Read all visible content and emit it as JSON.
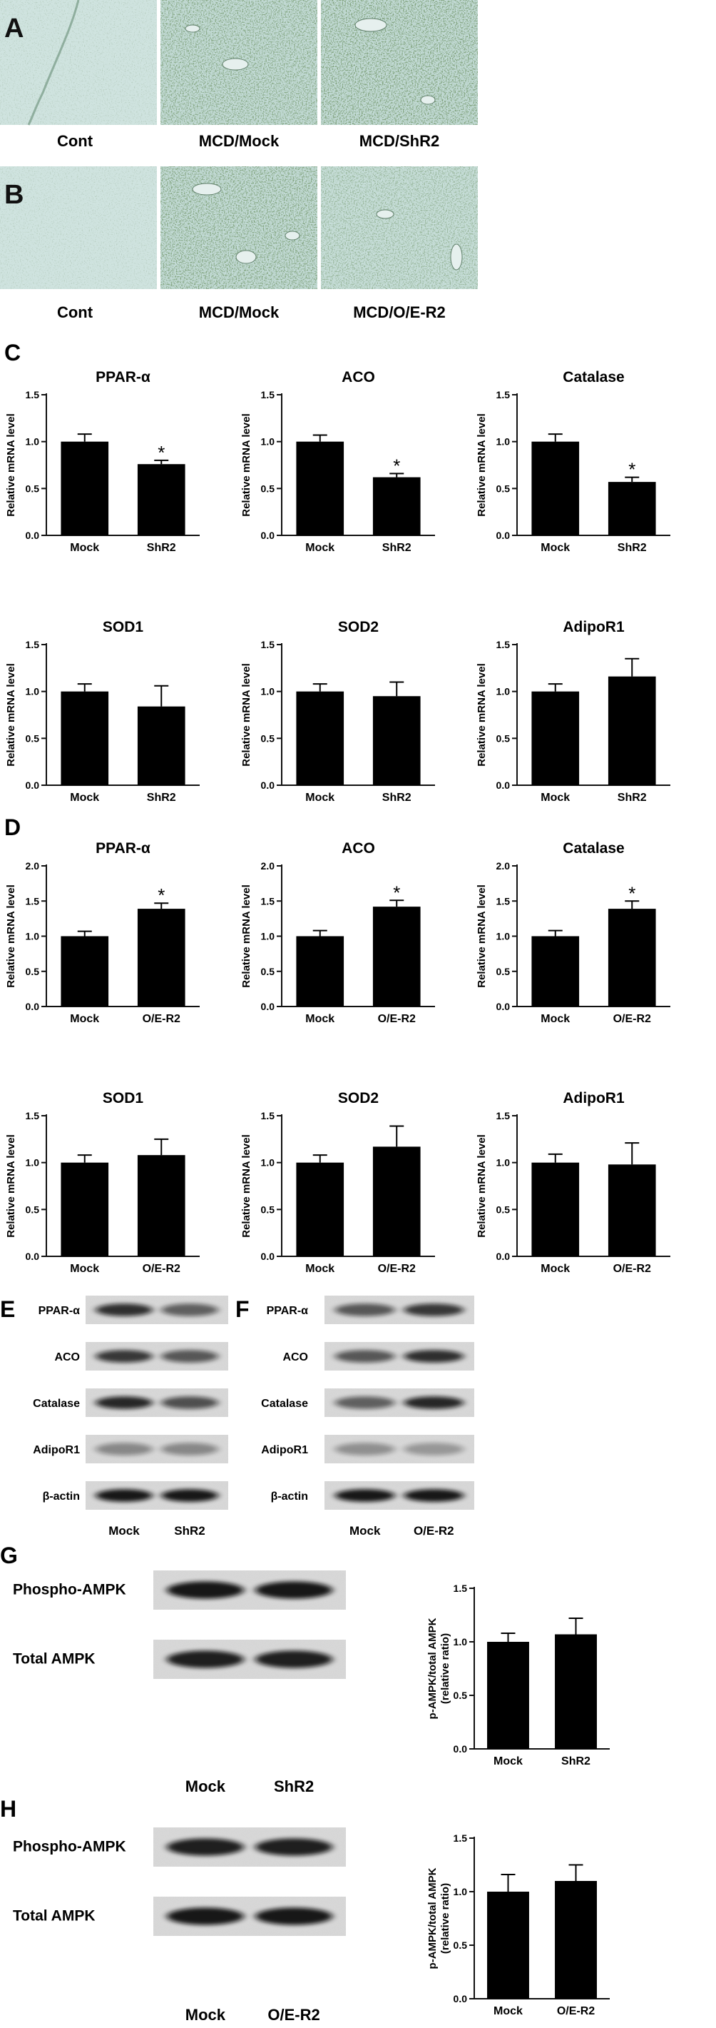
{
  "panels": {
    "A": {
      "letter": "A",
      "labels": [
        "Cont",
        "MCD/Mock",
        "MCD/ShR2"
      ],
      "staining": [
        "light",
        "heavy",
        "heavy"
      ]
    },
    "B": {
      "letter": "B",
      "labels": [
        "Cont",
        "MCD/Mock",
        "MCD/O/E-R2"
      ],
      "staining": [
        "light",
        "heavy",
        "medium"
      ]
    },
    "C": {
      "letter": "C"
    },
    "D": {
      "letter": "D"
    },
    "E": {
      "letter": "E",
      "rows": [
        "PPAR-α",
        "ACO",
        "Catalase",
        "AdipoR1",
        "β-actin"
      ],
      "lanes": [
        "Mock",
        "ShR2"
      ]
    },
    "F": {
      "letter": "F",
      "rows": [
        "PPAR-α",
        "ACO",
        "Catalase",
        "AdipoR1",
        "β-actin"
      ],
      "lanes": [
        "Mock",
        "O/E-R2"
      ]
    },
    "G": {
      "letter": "G",
      "rows": [
        "Phospho-AMPK",
        "Total AMPK"
      ],
      "lanes": [
        "Mock",
        "ShR2"
      ]
    },
    "H": {
      "letter": "H",
      "rows": [
        "Phospho-AMPK",
        "Total AMPK"
      ],
      "lanes": [
        "Mock",
        "O/E-R2"
      ]
    }
  },
  "chart_data": [
    {
      "id": "C1",
      "type": "bar",
      "title": "PPAR-α",
      "ylabel": "Relative mRNA level",
      "categories": [
        "Mock",
        "ShR2"
      ],
      "values": [
        1.0,
        0.76
      ],
      "errors": [
        0.08,
        0.04
      ],
      "significance": [
        "",
        "*"
      ],
      "ylim": [
        0,
        1.5
      ],
      "yticks": [
        "0.0",
        "0.5",
        "1.0",
        "1.5"
      ]
    },
    {
      "id": "C2",
      "type": "bar",
      "title": "ACO",
      "ylabel": "Relative mRNA level",
      "categories": [
        "Mock",
        "ShR2"
      ],
      "values": [
        1.0,
        0.62
      ],
      "errors": [
        0.07,
        0.04
      ],
      "significance": [
        "",
        "*"
      ],
      "ylim": [
        0,
        1.5
      ],
      "yticks": [
        "0.0",
        "0.5",
        "1.0",
        "1.5"
      ]
    },
    {
      "id": "C3",
      "type": "bar",
      "title": "Catalase",
      "ylabel": "Relative mRNA level",
      "categories": [
        "Mock",
        "ShR2"
      ],
      "values": [
        1.0,
        0.57
      ],
      "errors": [
        0.08,
        0.05
      ],
      "significance": [
        "",
        "*"
      ],
      "ylim": [
        0,
        1.5
      ],
      "yticks": [
        "0.0",
        "0.5",
        "1.0",
        "1.5"
      ]
    },
    {
      "id": "C4",
      "type": "bar",
      "title": "SOD1",
      "ylabel": "Relative mRNA level",
      "categories": [
        "Mock",
        "ShR2"
      ],
      "values": [
        1.0,
        0.84
      ],
      "errors": [
        0.08,
        0.22
      ],
      "significance": [
        "",
        ""
      ],
      "ylim": [
        0,
        1.5
      ],
      "yticks": [
        "0.0",
        "0.5",
        "1.0",
        "1.5"
      ]
    },
    {
      "id": "C5",
      "type": "bar",
      "title": "SOD2",
      "ylabel": "Relative mRNA level",
      "categories": [
        "Mock",
        "ShR2"
      ],
      "values": [
        1.0,
        0.95
      ],
      "errors": [
        0.08,
        0.15
      ],
      "significance": [
        "",
        ""
      ],
      "ylim": [
        0,
        1.5
      ],
      "yticks": [
        "0.0",
        "0.5",
        "1.0",
        "1.5"
      ]
    },
    {
      "id": "C6",
      "type": "bar",
      "title": "AdipoR1",
      "ylabel": "Relative mRNA level",
      "categories": [
        "Mock",
        "ShR2"
      ],
      "values": [
        1.0,
        1.16
      ],
      "errors": [
        0.08,
        0.19
      ],
      "significance": [
        "",
        ""
      ],
      "ylim": [
        0,
        1.5
      ],
      "yticks": [
        "0.0",
        "0.5",
        "1.0",
        "1.5"
      ]
    },
    {
      "id": "D1",
      "type": "bar",
      "title": "PPAR-α",
      "ylabel": "Relative mRNA level",
      "categories": [
        "Mock",
        "O/E-R2"
      ],
      "values": [
        1.0,
        1.39
      ],
      "errors": [
        0.07,
        0.08
      ],
      "significance": [
        "",
        "*"
      ],
      "ylim": [
        0,
        2.0
      ],
      "yticks": [
        "0.0",
        "0.5",
        "1.0",
        "1.5",
        "2.0"
      ]
    },
    {
      "id": "D2",
      "type": "bar",
      "title": "ACO",
      "ylabel": "Relative mRNA level",
      "categories": [
        "Mock",
        "O/E-R2"
      ],
      "values": [
        1.0,
        1.42
      ],
      "errors": [
        0.08,
        0.09
      ],
      "significance": [
        "",
        "*"
      ],
      "ylim": [
        0,
        2.0
      ],
      "yticks": [
        "0.0",
        "0.5",
        "1.0",
        "1.5",
        "2.0"
      ]
    },
    {
      "id": "D3",
      "type": "bar",
      "title": "Catalase",
      "ylabel": "Relative mRNA level",
      "categories": [
        "Mock",
        "O/E-R2"
      ],
      "values": [
        1.0,
        1.39
      ],
      "errors": [
        0.08,
        0.11
      ],
      "significance": [
        "",
        "*"
      ],
      "ylim": [
        0,
        2.0
      ],
      "yticks": [
        "0.0",
        "0.5",
        "1.0",
        "1.5",
        "2.0"
      ]
    },
    {
      "id": "D4",
      "type": "bar",
      "title": "SOD1",
      "ylabel": "Relative mRNA level",
      "categories": [
        "Mock",
        "O/E-R2"
      ],
      "values": [
        1.0,
        1.08
      ],
      "errors": [
        0.08,
        0.17
      ],
      "significance": [
        "",
        ""
      ],
      "ylim": [
        0,
        1.5
      ],
      "yticks": [
        "0.0",
        "0.5",
        "1.0",
        "1.5"
      ]
    },
    {
      "id": "D5",
      "type": "bar",
      "title": "SOD2",
      "ylabel": "Relative mRNA level",
      "categories": [
        "Mock",
        "O/E-R2"
      ],
      "values": [
        1.0,
        1.17
      ],
      "errors": [
        0.08,
        0.22
      ],
      "significance": [
        "",
        ""
      ],
      "ylim": [
        0,
        1.5
      ],
      "yticks": [
        "0.0",
        "0.5",
        "1.0",
        "1.5"
      ]
    },
    {
      "id": "D6",
      "type": "bar",
      "title": "AdipoR1",
      "ylabel": "Relative mRNA level",
      "categories": [
        "Mock",
        "O/E-R2"
      ],
      "values": [
        1.0,
        0.98
      ],
      "errors": [
        0.09,
        0.23
      ],
      "significance": [
        "",
        ""
      ],
      "ylim": [
        0,
        1.5
      ],
      "yticks": [
        "0.0",
        "0.5",
        "1.0",
        "1.5"
      ]
    },
    {
      "id": "G1",
      "type": "bar",
      "title": "",
      "ylabel": "p-AMPK/total AMPK (relative ratio)",
      "categories": [
        "Mock",
        "ShR2"
      ],
      "values": [
        1.0,
        1.07
      ],
      "errors": [
        0.08,
        0.15
      ],
      "significance": [
        "",
        ""
      ],
      "ylim": [
        0,
        1.5
      ],
      "yticks": [
        "0.0",
        "0.5",
        "1.0",
        "1.5"
      ]
    },
    {
      "id": "H1",
      "type": "bar",
      "title": "",
      "ylabel": "p-AMPK/total AMPK (relative ratio)",
      "categories": [
        "Mock",
        "O/E-R2"
      ],
      "values": [
        1.0,
        1.1
      ],
      "errors": [
        0.16,
        0.15
      ],
      "significance": [
        "",
        ""
      ],
      "ylim": [
        0,
        1.5
      ],
      "yticks": [
        "0.0",
        "0.5",
        "1.0",
        "1.5"
      ]
    }
  ]
}
